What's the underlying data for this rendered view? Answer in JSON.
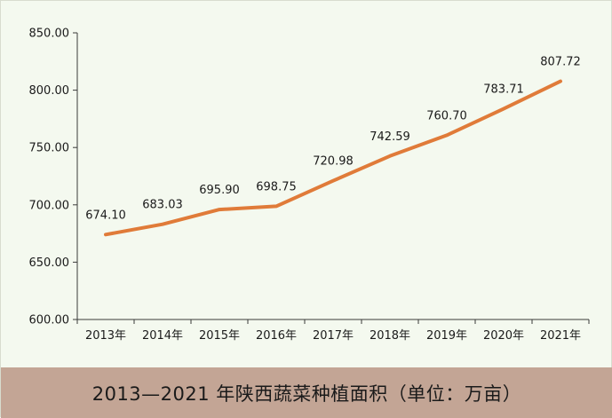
{
  "chart_data": {
    "type": "line",
    "title": "2013—2021 年陕西蔬菜种植面积（单位：万亩）",
    "xlabel": "",
    "ylabel": "",
    "categories": [
      "2013年",
      "2014年",
      "2015年",
      "2016年",
      "2017年",
      "2018年",
      "2019年",
      "2020年",
      "2021年"
    ],
    "series": [
      {
        "name": "陕西蔬菜种植面积",
        "values": [
          674.1,
          683.03,
          695.9,
          698.75,
          720.98,
          742.59,
          760.7,
          783.71,
          807.72
        ],
        "labels": [
          "674.10",
          "683.03",
          "695.90",
          "698.75",
          "720.98",
          "742.59",
          "760.70",
          "783.71",
          "807.72"
        ],
        "color": "#e07b39"
      }
    ],
    "ylim": [
      600,
      850
    ],
    "yticks": [
      600,
      650,
      700,
      750,
      800,
      850
    ],
    "ytick_labels": [
      "600.00",
      "650.00",
      "700.00",
      "750.00",
      "800.00",
      "850.00"
    ],
    "grid": false
  }
}
